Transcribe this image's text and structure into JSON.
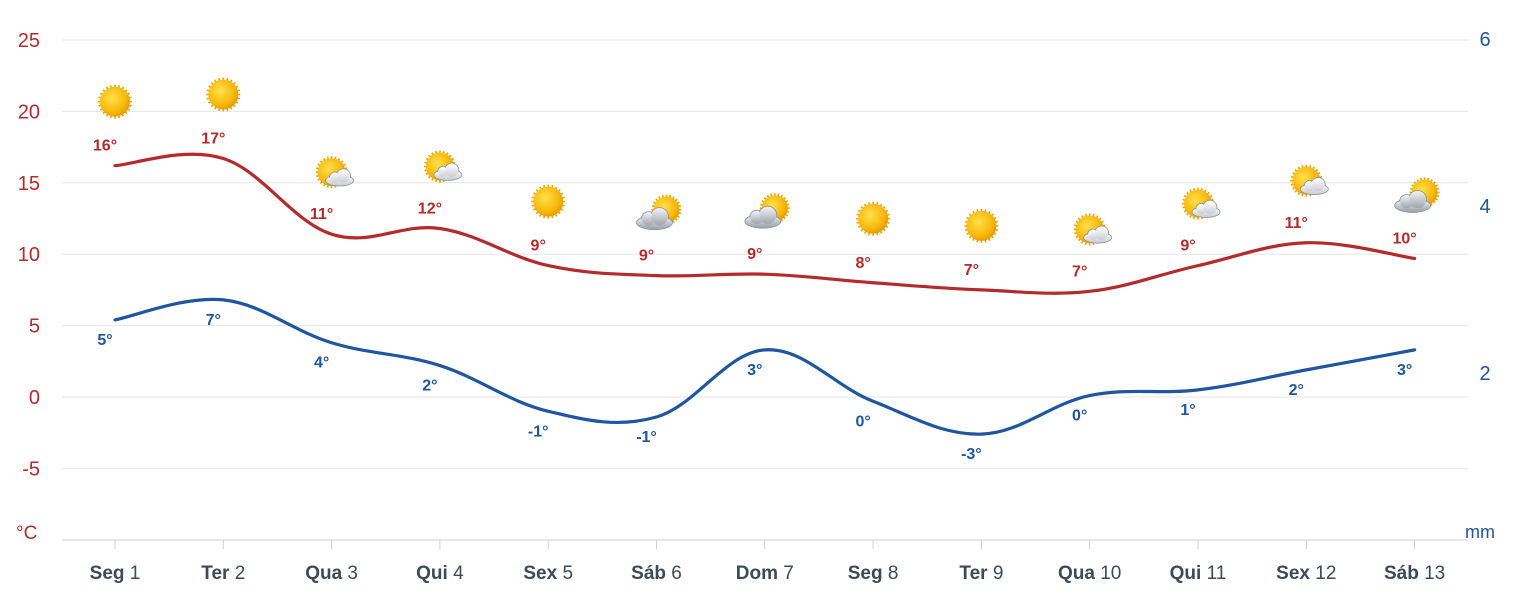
{
  "chart_data": {
    "type": "line",
    "categories": [
      {
        "dow": "Seg",
        "day": "1"
      },
      {
        "dow": "Ter",
        "day": "2"
      },
      {
        "dow": "Qua",
        "day": "3"
      },
      {
        "dow": "Qui",
        "day": "4"
      },
      {
        "dow": "Sex",
        "day": "5"
      },
      {
        "dow": "Sáb",
        "day": "6"
      },
      {
        "dow": "Dom",
        "day": "7"
      },
      {
        "dow": "Seg",
        "day": "8"
      },
      {
        "dow": "Ter",
        "day": "9"
      },
      {
        "dow": "Qua",
        "day": "10"
      },
      {
        "dow": "Qui",
        "day": "11"
      },
      {
        "dow": "Sex",
        "day": "12"
      },
      {
        "dow": "Sáb",
        "day": "13"
      }
    ],
    "series": [
      {
        "values": [
          16.2,
          16.7,
          11.4,
          11.8,
          9.2,
          8.5,
          8.6,
          8.0,
          7.5,
          7.4,
          9.2,
          10.8,
          9.7
        ],
        "labels": [
          "16°",
          "17°",
          "11°",
          "12°",
          "9°",
          "9°",
          "9°",
          "8°",
          "7°",
          "7°",
          "9°",
          "11°",
          "10°"
        ],
        "color": "#b52a2a"
      },
      {
        "values": [
          5.4,
          6.8,
          3.8,
          2.2,
          -1.0,
          -1.4,
          3.3,
          -0.3,
          -2.6,
          0.1,
          0.5,
          1.9,
          3.3
        ],
        "labels": [
          "5°",
          "7°",
          "4°",
          "2°",
          "-1°",
          "-1°",
          "3°",
          "0°",
          "-3°",
          "0°",
          "1°",
          "2°",
          "3°"
        ],
        "color": "#1e56a0"
      }
    ],
    "icons": [
      "sun-icon",
      "sun-icon",
      "partly-cloudy-icon",
      "partly-cloudy-icon",
      "sun-icon",
      "mostly-cloudy-icon",
      "mostly-cloudy-icon",
      "sun-icon",
      "sun-icon",
      "partly-cloudy-icon",
      "partly-cloudy-icon",
      "partly-cloudy-icon",
      "mostly-cloudy-icon"
    ],
    "y_left": {
      "unit": "°C",
      "ticks": [
        "25",
        "20",
        "15",
        "10",
        "5",
        "0",
        "-5"
      ],
      "range": [
        -10,
        25
      ]
    },
    "y_right": {
      "unit": "mm",
      "ticks": [
        "6",
        "4",
        "2"
      ],
      "range": [
        0,
        6
      ]
    },
    "grid": true
  }
}
